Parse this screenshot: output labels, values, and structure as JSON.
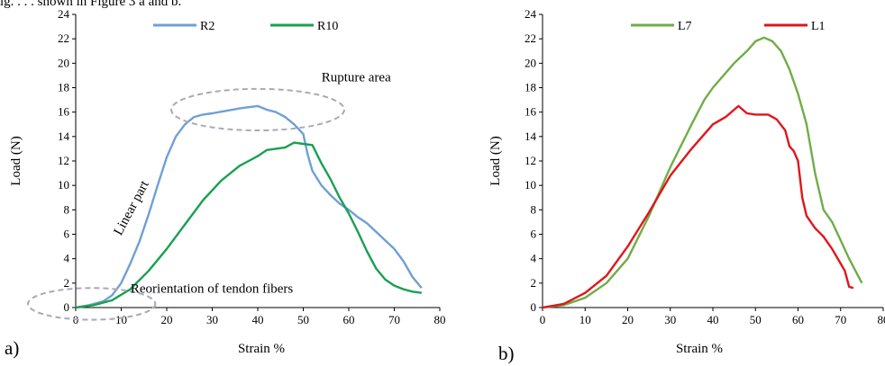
{
  "caption_fragment": "ig. . . . shown in Figure 3 a and b.",
  "chart_data": [
    {
      "type": "line",
      "panel_label": "a)",
      "xlabel": "Strain %",
      "ylabel": "Load (N)",
      "xlim": [
        0,
        80
      ],
      "ylim": [
        0,
        24
      ],
      "xticks": [
        "0",
        "10",
        "20",
        "30",
        "40",
        "50",
        "60",
        "70",
        "80"
      ],
      "yticks": [
        "0",
        "2",
        "4",
        "6",
        "8",
        "10",
        "12",
        "14",
        "16",
        "18",
        "20",
        "22",
        "24"
      ],
      "grid": false,
      "legend_position": "top",
      "series": [
        {
          "name": "R2",
          "color": "#6fa0d4",
          "x": [
            0,
            3,
            6,
            8,
            10,
            12,
            14,
            16,
            18,
            20,
            22,
            24,
            26,
            28,
            30,
            33,
            36,
            38,
            40,
            42,
            44,
            46,
            48,
            50,
            51,
            52,
            54,
            56,
            58,
            60,
            62,
            64,
            66,
            68,
            70,
            72,
            74,
            76
          ],
          "y": [
            0,
            0.2,
            0.5,
            1.0,
            2.0,
            3.6,
            5.4,
            7.6,
            10.0,
            12.3,
            14.0,
            15.0,
            15.6,
            15.8,
            15.9,
            16.1,
            16.3,
            16.4,
            16.5,
            16.2,
            16.0,
            15.6,
            15.0,
            14.2,
            12.5,
            11.2,
            10.0,
            9.2,
            8.5,
            8.0,
            7.4,
            6.9,
            6.2,
            5.5,
            4.8,
            3.8,
            2.5,
            1.6
          ]
        },
        {
          "name": "R10",
          "color": "#1aa052",
          "x": [
            0,
            4,
            8,
            12,
            16,
            20,
            24,
            28,
            32,
            36,
            38,
            40,
            42,
            44,
            46,
            48,
            50,
            52,
            54,
            56,
            58,
            60,
            62,
            64,
            66,
            68,
            70,
            72,
            74,
            76
          ],
          "y": [
            0,
            0.2,
            0.6,
            1.5,
            3.0,
            4.8,
            6.8,
            8.8,
            10.4,
            11.6,
            12.0,
            12.4,
            12.9,
            13.0,
            13.1,
            13.5,
            13.4,
            13.3,
            11.8,
            10.5,
            9.0,
            7.7,
            6.2,
            4.6,
            3.2,
            2.3,
            1.8,
            1.5,
            1.3,
            1.2
          ]
        }
      ],
      "annotations": [
        {
          "text": "Rupture area",
          "x": 54,
          "y": 18.5
        },
        {
          "text": "Linear part",
          "x": 13,
          "y": 8
        },
        {
          "text": "Reorientation of tendon fibers",
          "x": 18,
          "y": 1.2
        }
      ],
      "highlight_ellipses": [
        {
          "cx": 40,
          "cy": 16.2,
          "rx": 19,
          "ry": 1.7
        },
        {
          "cx": 3.5,
          "cy": 0.3,
          "rx": 14,
          "ry": 1.3
        }
      ]
    },
    {
      "type": "line",
      "panel_label": "b)",
      "xlabel": "Strain %",
      "ylabel": "Load (N)",
      "xlim": [
        0,
        80
      ],
      "ylim": [
        0,
        24
      ],
      "xticks": [
        "0",
        "10",
        "20",
        "30",
        "40",
        "50",
        "60",
        "70",
        "80"
      ],
      "yticks": [
        "0",
        "2",
        "4",
        "6",
        "8",
        "10",
        "12",
        "14",
        "16",
        "18",
        "20",
        "22",
        "24"
      ],
      "grid": false,
      "legend_position": "top",
      "series": [
        {
          "name": "L7",
          "color": "#70ad47",
          "x": [
            0,
            5,
            10,
            15,
            20,
            25,
            30,
            35,
            38,
            40,
            45,
            48,
            50,
            52,
            54,
            56,
            58,
            60,
            62,
            64,
            66,
            68,
            70,
            72,
            75
          ],
          "y": [
            0,
            0.2,
            0.8,
            2.0,
            4.0,
            7.5,
            11.5,
            15.0,
            17.0,
            18.0,
            20.0,
            21.0,
            21.8,
            22.1,
            21.8,
            21.0,
            19.5,
            17.5,
            15.0,
            11.0,
            8.0,
            7.0,
            5.5,
            4.0,
            2.0
          ]
        },
        {
          "name": "L1",
          "color": "#e0161a",
          "x": [
            0,
            5,
            10,
            15,
            20,
            25,
            30,
            35,
            40,
            43,
            46,
            48,
            50,
            53,
            55,
            57,
            58,
            59,
            60,
            61,
            62,
            64,
            66,
            68,
            70,
            71,
            72,
            73
          ],
          "y": [
            0,
            0.3,
            1.2,
            2.6,
            5.0,
            7.8,
            10.8,
            13.0,
            15.0,
            15.6,
            16.5,
            15.9,
            15.8,
            15.8,
            15.4,
            14.5,
            13.2,
            12.8,
            12.0,
            9.0,
            7.5,
            6.5,
            5.8,
            4.8,
            3.6,
            3.0,
            1.7,
            1.6
          ]
        }
      ]
    }
  ]
}
